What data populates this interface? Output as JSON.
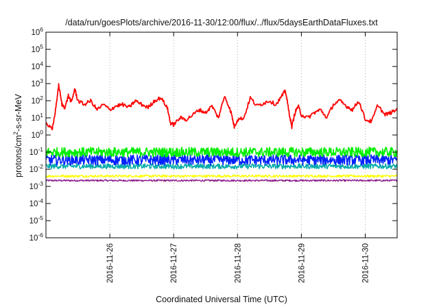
{
  "chart_data": {
    "type": "line",
    "title": "/data/run/goesPlots/archive/2016-11-30/12:00/flux/../flux/5daysEarthDataFluxes.txt",
    "xlabel": "Coordinated Universal Time (UTC)",
    "ylabel": {
      "pre": "protons/cm",
      "sup": "2",
      "post": "-s-sr-MeV"
    },
    "x_domain_days": [
      25.0,
      30.5
    ],
    "x_ticks": [
      {
        "day": 26,
        "label": "2016-11-26"
      },
      {
        "day": 27,
        "label": "2016-11-27"
      },
      {
        "day": 28,
        "label": "2016-11-28"
      },
      {
        "day": 29,
        "label": "2016-11-29"
      },
      {
        "day": 30,
        "label": "2016-11-30"
      }
    ],
    "y_scale": "log",
    "ylim": [
      1e-06,
      1000000.0
    ],
    "y_ticks": [
      {
        "base": "10",
        "exp": "-6"
      },
      {
        "base": "10",
        "exp": "-5"
      },
      {
        "base": "10",
        "exp": "-4"
      },
      {
        "base": "10",
        "exp": "-3"
      },
      {
        "base": "10",
        "exp": "-2"
      },
      {
        "base": "10",
        "exp": "-1"
      },
      {
        "base": "10",
        "exp": "0"
      },
      {
        "base": "10",
        "exp": "1"
      },
      {
        "base": "10",
        "exp": "2"
      },
      {
        "base": "10",
        "exp": "3"
      },
      {
        "base": "10",
        "exp": "4"
      },
      {
        "base": "10",
        "exp": "5"
      },
      {
        "base": "10",
        "exp": "6"
      }
    ],
    "grid": "dotted, vertical lines at date ticks",
    "series": [
      {
        "color": "#ff0000",
        "x": [
          25.0,
          25.1,
          25.15,
          25.2,
          25.25,
          25.3,
          25.35,
          25.4,
          25.45,
          25.5,
          25.6,
          25.7,
          25.8,
          25.9,
          26.0,
          26.1,
          26.2,
          26.3,
          26.4,
          26.5,
          26.6,
          26.7,
          26.8,
          26.9,
          26.95,
          27.0,
          27.1,
          27.2,
          27.3,
          27.4,
          27.5,
          27.6,
          27.7,
          27.8,
          27.9,
          27.95,
          28.0,
          28.1,
          28.2,
          28.3,
          28.4,
          28.5,
          28.6,
          28.7,
          28.75,
          28.8,
          28.85,
          28.9,
          28.95,
          29.0,
          29.1,
          29.2,
          29.3,
          29.4,
          29.5,
          29.6,
          29.7,
          29.8,
          29.9,
          30.0,
          30.1,
          30.2,
          30.3,
          30.4,
          30.5
        ],
        "y": [
          5,
          2,
          30,
          800,
          60,
          40,
          200,
          80,
          500,
          100,
          60,
          100,
          30,
          60,
          30,
          50,
          60,
          40,
          100,
          60,
          40,
          100,
          150,
          40,
          5,
          4,
          10,
          8,
          15,
          30,
          20,
          50,
          10,
          200,
          20,
          3,
          8,
          10,
          150,
          50,
          70,
          100,
          60,
          200,
          400,
          30,
          3,
          20,
          50,
          15,
          10,
          20,
          30,
          10,
          60,
          100,
          50,
          30,
          100,
          8,
          6,
          60,
          15,
          20,
          30
        ]
      },
      {
        "color": "#00ee00",
        "y": 0.1
      },
      {
        "color": "#0022ff",
        "y": 0.035
      },
      {
        "color": "#00aaaa",
        "y": 0.015
      },
      {
        "color": "#ffff00",
        "y": 0.004
      },
      {
        "color": "#8b1a8b",
        "y": 0.0022
      }
    ]
  }
}
